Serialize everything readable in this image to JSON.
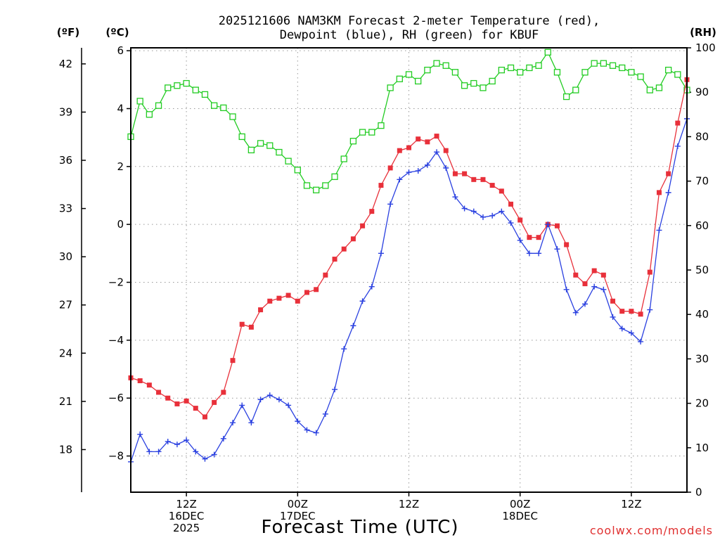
{
  "chart_data": {
    "type": "line",
    "title_line1": "2025121606 NAM3KM Forecast 2-meter Temperature (red),",
    "title_line2": "Dewpoint (blue), RH (green) for KBUF",
    "xlabel": "Forecast Time (UTC)",
    "credit": "coolwx.com/models",
    "units": {
      "f": "(ºF)",
      "c": "(ºC)",
      "rh": "(RH)"
    },
    "ylim_c": [
      -9.25,
      6.1
    ],
    "ylim_f": [
      15.35,
      43.0
    ],
    "ylim_rh": [
      0,
      100
    ],
    "yticks_c": [
      "6",
      "4",
      "2",
      "0",
      "-2",
      "-4",
      "-6",
      "-8"
    ],
    "yticks_c_values": [
      6,
      4,
      2,
      0,
      -2,
      -4,
      -6,
      -8
    ],
    "yticks_f": [
      "42",
      "39",
      "36",
      "33",
      "30",
      "27",
      "24",
      "21",
      "18"
    ],
    "yticks_f_values": [
      42,
      39,
      36,
      33,
      30,
      27,
      24,
      21,
      18
    ],
    "yticks_rh": [
      "100",
      "90",
      "80",
      "70",
      "60",
      "50",
      "40",
      "30",
      "20",
      "10",
      "0"
    ],
    "yticks_rh_values": [
      100,
      90,
      80,
      70,
      60,
      50,
      40,
      30,
      20,
      10,
      0
    ],
    "x_range_hours": [
      0,
      60
    ],
    "xticks": [
      {
        "hour": 6,
        "line1": "12Z",
        "line2": "16DEC",
        "line3": "2025"
      },
      {
        "hour": 18,
        "line1": "00Z",
        "line2": "17DEC",
        "line3": ""
      },
      {
        "hour": 30,
        "line1": "12Z",
        "line2": "",
        "line3": ""
      },
      {
        "hour": 42,
        "line1": "00Z",
        "line2": "18DEC",
        "line3": ""
      },
      {
        "hour": 54,
        "line1": "12Z",
        "line2": "",
        "line3": ""
      }
    ],
    "series": [
      {
        "name": "2-meter Temperature (ºC)",
        "color": "#e8303a",
        "marker": "filled-square",
        "axis": "c",
        "values": [
          -5.3,
          -5.4,
          -5.55,
          -5.8,
          -6.0,
          -6.2,
          -6.1,
          -6.35,
          -6.65,
          -6.15,
          -5.8,
          -4.7,
          -3.45,
          -3.55,
          -2.95,
          -2.65,
          -2.55,
          -2.45,
          -2.65,
          -2.35,
          -2.25,
          -1.75,
          -1.2,
          -0.85,
          -0.5,
          -0.05,
          0.45,
          1.35,
          1.95,
          2.55,
          2.65,
          2.95,
          2.85,
          3.05,
          2.55,
          1.75,
          1.75,
          1.55,
          1.55,
          1.35,
          1.15,
          0.7,
          0.15,
          -0.45,
          -0.45,
          0.0,
          -0.05,
          -0.7,
          -1.75,
          -2.05,
          -1.6,
          -1.75,
          -2.65,
          -3.0,
          -3.0,
          -3.1,
          -1.65,
          1.1,
          1.75,
          3.5,
          5.0
        ]
      },
      {
        "name": "Dewpoint (ºC)",
        "color": "#2a40e0",
        "marker": "plus",
        "axis": "c",
        "values": [
          -8.2,
          -7.25,
          -7.85,
          -7.85,
          -7.5,
          -7.6,
          -7.45,
          -7.85,
          -8.1,
          -7.95,
          -7.4,
          -6.85,
          -6.25,
          -6.85,
          -6.05,
          -5.9,
          -6.05,
          -6.25,
          -6.8,
          -7.1,
          -7.2,
          -6.55,
          -5.7,
          -4.3,
          -3.5,
          -2.65,
          -2.15,
          -1.0,
          0.7,
          1.55,
          1.8,
          1.85,
          2.05,
          2.5,
          1.95,
          0.95,
          0.55,
          0.45,
          0.25,
          0.3,
          0.45,
          0.05,
          -0.55,
          -1.0,
          -1.0,
          0.0,
          -0.85,
          -2.25,
          -3.05,
          -2.75,
          -2.15,
          -2.25,
          -3.2,
          -3.6,
          -3.75,
          -4.05,
          -2.95,
          -0.2,
          1.1,
          2.7,
          3.65
        ]
      },
      {
        "name": "RH (%)",
        "color": "#22cc22",
        "marker": "open-square",
        "axis": "rh",
        "values": [
          80,
          88,
          85,
          87,
          91,
          91.5,
          92,
          90.5,
          89.5,
          87,
          86.5,
          84.5,
          80,
          77,
          78.5,
          78,
          76.5,
          74.5,
          72.5,
          69,
          68,
          69,
          71,
          75,
          79,
          81,
          81,
          82.5,
          91,
          93,
          94,
          92.5,
          95,
          96.5,
          96,
          94.5,
          91.5,
          92,
          91,
          92.5,
          95,
          95.5,
          94.5,
          95.5,
          96,
          99,
          94.5,
          89,
          90.5,
          94.5,
          96.5,
          96.5,
          96,
          95.5,
          94.5,
          93.5,
          90.5,
          91,
          95,
          94,
          90.5
        ]
      }
    ]
  }
}
